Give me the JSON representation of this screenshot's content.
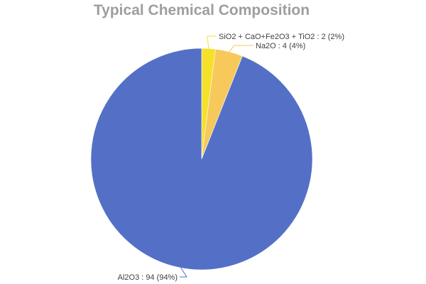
{
  "chart_data": {
    "type": "pie",
    "title": "Typical Chemical Composition",
    "slices": [
      {
        "name": "SiO2 + CaO+Fe2O3 + TiO2",
        "value": 2,
        "percent": "2%",
        "color": "#f5e02a",
        "label": "SiO2 + CaO+Fe2O3 + TiO2 : 2 (2%)"
      },
      {
        "name": "Na2O",
        "value": 4,
        "percent": "4%",
        "color": "#f7c85a",
        "label": "Na2O : 4 (4%)"
      },
      {
        "name": "Al2O3",
        "value": 94,
        "percent": "94%",
        "color": "#5470c6",
        "label": "Al2O3 : 94 (94%)"
      }
    ],
    "legend": "none"
  }
}
